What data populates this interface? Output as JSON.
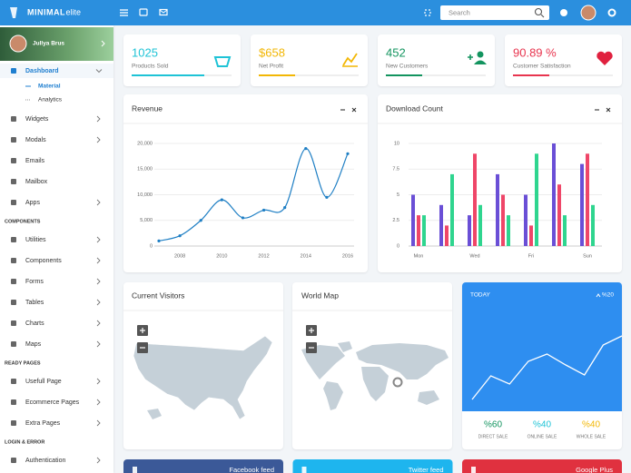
{
  "header": {
    "logo": {
      "bold": "MINIMAL",
      "light": "elite"
    },
    "search_placeholder": "Search"
  },
  "sidebar": {
    "user": "Jullya Brus",
    "menu": [
      {
        "label": "Dashboard",
        "active": true,
        "submenu": true,
        "children": [
          {
            "label": "Material",
            "active": true
          },
          {
            "label": "Analytics"
          }
        ]
      },
      {
        "label": "Widgets",
        "submenu": true
      },
      {
        "label": "Modals",
        "submenu": true
      },
      {
        "label": "Emails"
      },
      {
        "label": "Mailbox"
      },
      {
        "label": "Apps",
        "submenu": true
      },
      {
        "section": "COMPONENTS"
      },
      {
        "label": "Utilities",
        "submenu": true
      },
      {
        "label": "Components",
        "submenu": true
      },
      {
        "label": "Forms",
        "submenu": true
      },
      {
        "label": "Tables",
        "submenu": true
      },
      {
        "label": "Charts",
        "submenu": true
      },
      {
        "label": "Maps",
        "submenu": true
      },
      {
        "section": "READY PAGES"
      },
      {
        "label": "Usefull Page",
        "submenu": true
      },
      {
        "label": "Ecommerce Pages",
        "submenu": true
      },
      {
        "label": "Extra Pages",
        "submenu": true
      },
      {
        "section": "LOGIN & ERROR"
      },
      {
        "label": "Authentication",
        "submenu": true
      }
    ]
  },
  "stats": [
    {
      "value": "1025",
      "label": "Products Sold",
      "color": "#1ec3d6"
    },
    {
      "value": "$658",
      "label": "Net Profit",
      "color": "#f2b705"
    },
    {
      "value": "452",
      "label": "New Customers",
      "color": "#13945f"
    },
    {
      "value": "90.89 %",
      "label": "Customer Satisfaction",
      "color": "#e8354f"
    }
  ],
  "chart_data": [
    {
      "type": "line",
      "title": "Revenue",
      "color": "#1f7fc4",
      "x": [
        2007,
        2008,
        2009,
        2010,
        2011,
        2012,
        2013,
        2014,
        2015,
        2016
      ],
      "values": [
        1000,
        2000,
        5000,
        9000,
        5500,
        7000,
        7500,
        19000,
        9500,
        18000
      ],
      "xlim": [
        2007,
        2016
      ],
      "xticks": [
        2008,
        2010,
        2012,
        2014,
        2016
      ],
      "ylim": [
        0,
        20000
      ],
      "yticks": [
        0,
        {
          "value": 5000,
          "label": "5,000"
        },
        {
          "value": 10000,
          "label": "10,000"
        },
        {
          "value": 15000,
          "label": "15,000"
        },
        {
          "value": 20000,
          "label": "20,000"
        }
      ],
      "grid": true
    },
    {
      "type": "bar",
      "title": "Download Count",
      "categories": [
        "Mon",
        null,
        "Wed",
        null,
        "Fri",
        null,
        "Sun"
      ],
      "series": [
        {
          "color": "#6a4fd6",
          "values": [
            5,
            4,
            3,
            7,
            5,
            10,
            8
          ]
        },
        {
          "color": "#ef4668",
          "values": [
            3,
            2,
            9,
            5,
            2,
            6,
            9
          ]
        },
        {
          "color": "#2fd58f",
          "values": [
            3,
            7,
            4,
            3,
            9,
            3,
            4
          ]
        }
      ],
      "ylim": [
        0,
        10
      ],
      "yticks": [
        0,
        2.5,
        5,
        7.5,
        10
      ],
      "grid": true
    },
    {
      "type": "sparkline",
      "title": "TODAY",
      "annotation": "%20",
      "color": "#ffffff",
      "values": [
        13,
        39,
        30,
        55,
        63,
        51,
        40,
        73,
        83
      ],
      "ylim": [
        0,
        100
      ]
    }
  ],
  "maps": [
    {
      "title": "Current Visitors"
    },
    {
      "title": "World Map"
    }
  ],
  "sales": [
    {
      "value": "%60",
      "label": "DIRECT SALE",
      "color": "#13945f"
    },
    {
      "value": "%40",
      "label": "ONLINE SALE",
      "color": "#1ec3d6"
    },
    {
      "value": "%40",
      "label": "WHOLE SALE",
      "color": "#f2b705"
    }
  ],
  "feeds": [
    {
      "label": "Facebook feed",
      "color": "#3b5998"
    },
    {
      "label": "Twitter feed",
      "color": "#1eb5ee"
    },
    {
      "label": "Google Plus",
      "color": "#e0313f"
    }
  ]
}
